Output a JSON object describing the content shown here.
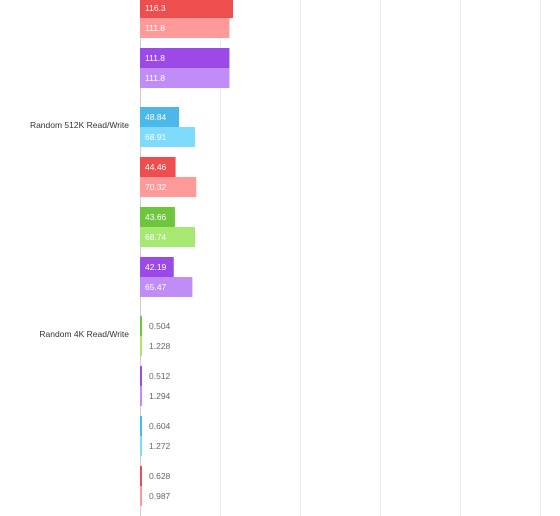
{
  "chart_data": {
    "type": "bar",
    "orientation": "horizontal",
    "grid": true,
    "xlim": [
      0,
      500
    ],
    "grid_values": [
      0,
      100,
      200,
      300,
      400,
      500
    ],
    "groups": [
      {
        "label": "",
        "pairs": [
          {
            "read": 116.3,
            "write": 111.8,
            "read_color": "#ef4e4e",
            "write_color": "#ff9a9a"
          },
          {
            "read": 111.8,
            "write": 111.8,
            "read_color": "#9b4ae6",
            "write_color": "#c08cf6"
          }
        ]
      },
      {
        "label": "Random 512K Read/Write",
        "pairs": [
          {
            "read": 48.84,
            "write": 68.91,
            "read_color": "#4bb7ea",
            "write_color": "#7fdbfc"
          },
          {
            "read": 44.46,
            "write": 70.32,
            "read_color": "#ef4e4e",
            "write_color": "#ff9a9a"
          },
          {
            "read": 43.66,
            "write": 68.74,
            "read_color": "#6dc63c",
            "write_color": "#a6e872"
          },
          {
            "read": 42.19,
            "write": 65.47,
            "read_color": "#9b4ae6",
            "write_color": "#c08cf6"
          }
        ]
      },
      {
        "label": "Random 4K Read/Write",
        "pairs": [
          {
            "read": 0.504,
            "write": 1.228,
            "read_color": "#6dc63c",
            "write_color": "#a6e872"
          },
          {
            "read": 0.512,
            "write": 1.294,
            "read_color": "#9b4ae6",
            "write_color": "#c08cf6"
          },
          {
            "read": 0.604,
            "write": 1.272,
            "read_color": "#4bb7ea",
            "write_color": "#7fdbfc"
          },
          {
            "read": 0.628,
            "write": 0.987,
            "read_color": "#ef4e4e",
            "write_color": "#ff9a9a"
          }
        ]
      }
    ]
  }
}
